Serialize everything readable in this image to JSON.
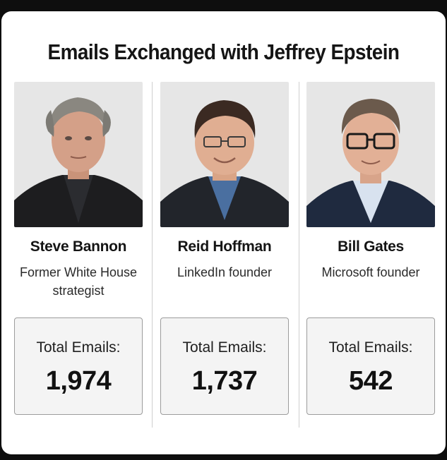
{
  "title": "Emails Exchanged with Jeffrey Epstein",
  "people": [
    {
      "name": "Steve Bannon",
      "role": "Former White House strategist",
      "email_label": "Total Emails:",
      "email_count": "1,974",
      "photo": "portrait-steve-bannon"
    },
    {
      "name": "Reid Hoffman",
      "role": "LinkedIn founder",
      "email_label": "Total Emails:",
      "email_count": "1,737",
      "photo": "portrait-reid-hoffman"
    },
    {
      "name": "Bill Gates",
      "role": "Microsoft founder",
      "email_label": "Total Emails:",
      "email_count": "542",
      "photo": "portrait-bill-gates"
    }
  ]
}
